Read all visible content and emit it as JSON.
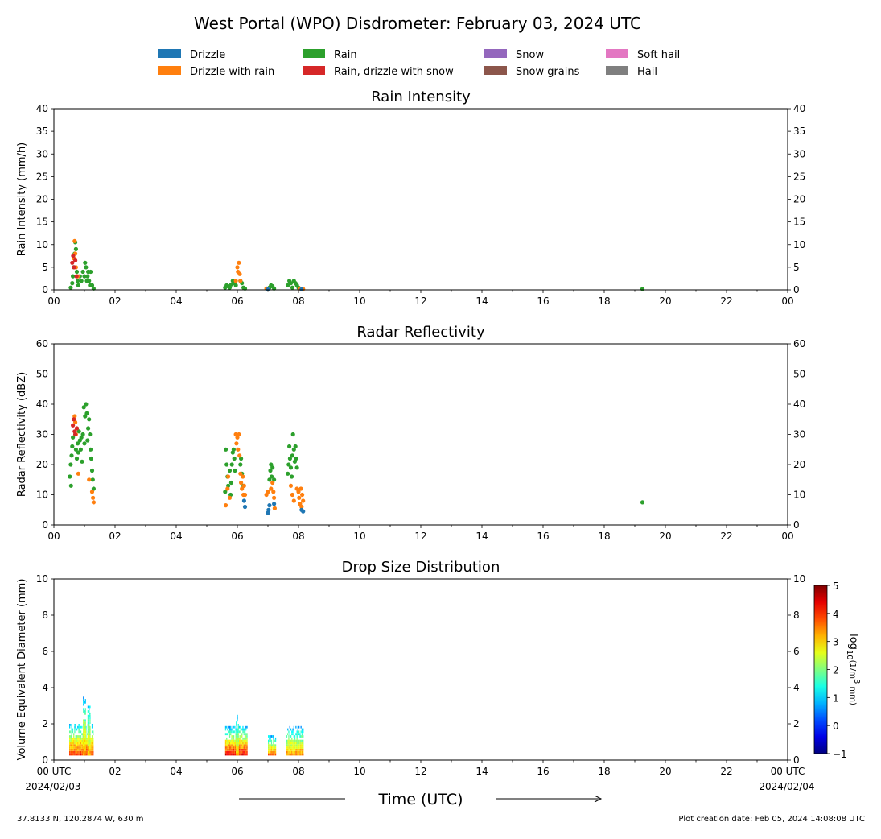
{
  "figure": {
    "title": "West Portal (WPO) Disdrometer: February 03, 2024 UTC",
    "xlabel": "Time (UTC)",
    "footer_left": "37.8133 N, 120.2874 W, 630 m",
    "footer_right": "Plot creation date: Feb 05, 2024 14:08:08 UTC",
    "x_ticks": [
      "00",
      "02",
      "04",
      "06",
      "08",
      "10",
      "12",
      "14",
      "16",
      "18",
      "20",
      "22",
      "00"
    ],
    "bottom_x_ticks": [
      "00 UTC",
      "02",
      "04",
      "06",
      "08",
      "10",
      "12",
      "14",
      "16",
      "18",
      "20",
      "22",
      "00 UTC"
    ],
    "start_date": "2024/02/03",
    "end_date": "2024/02/04"
  },
  "legend": [
    {
      "label": "Drizzle",
      "color": "#1f77b4"
    },
    {
      "label": "Drizzle with rain",
      "color": "#ff7f0e"
    },
    {
      "label": "Rain",
      "color": "#2ca02c"
    },
    {
      "label": "Rain, drizzle with snow",
      "color": "#d62728"
    },
    {
      "label": "Snow",
      "color": "#9467bd"
    },
    {
      "label": "Snow grains",
      "color": "#8c564b"
    },
    {
      "label": "Soft hail",
      "color": "#e377c2"
    },
    {
      "label": "Hail",
      "color": "#7f7f7f"
    }
  ],
  "chart_data": [
    {
      "type": "scatter",
      "title": "Rain Intensity",
      "ylabel": "Rain Intensity (mm/h)",
      "xlim": [
        0,
        24
      ],
      "ylim": [
        0,
        40
      ],
      "yticks": [
        0,
        5,
        10,
        15,
        20,
        25,
        30,
        35,
        40
      ],
      "series": [
        {
          "name": "Rain",
          "color": "#2ca02c",
          "points": [
            [
              0.55,
              0.5
            ],
            [
              0.6,
              1.5
            ],
            [
              0.62,
              3
            ],
            [
              0.65,
              5
            ],
            [
              0.68,
              8
            ],
            [
              0.7,
              10.5
            ],
            [
              0.72,
              9
            ],
            [
              0.75,
              4
            ],
            [
              0.78,
              2
            ],
            [
              0.8,
              1
            ],
            [
              0.85,
              3
            ],
            [
              0.9,
              2
            ],
            [
              0.95,
              4
            ],
            [
              1.0,
              3
            ],
            [
              1.02,
              6
            ],
            [
              1.05,
              5
            ],
            [
              1.08,
              2
            ],
            [
              1.1,
              3
            ],
            [
              1.12,
              4
            ],
            [
              1.15,
              2
            ],
            [
              1.18,
              1
            ],
            [
              1.2,
              4
            ],
            [
              1.25,
              1
            ],
            [
              1.3,
              0.3
            ],
            [
              5.6,
              0.5
            ],
            [
              5.65,
              1
            ],
            [
              5.7,
              0.8
            ],
            [
              5.75,
              0.5
            ],
            [
              5.8,
              1.2
            ],
            [
              5.85,
              2
            ],
            [
              5.9,
              1.5
            ],
            [
              5.95,
              1
            ],
            [
              6.1,
              2
            ],
            [
              6.15,
              1.5
            ],
            [
              6.2,
              0.5
            ],
            [
              6.25,
              0.3
            ],
            [
              7.05,
              0.5
            ],
            [
              7.1,
              1
            ],
            [
              7.15,
              0.8
            ],
            [
              7.2,
              0.3
            ],
            [
              7.65,
              1
            ],
            [
              7.7,
              2
            ],
            [
              7.75,
              1.5
            ],
            [
              7.8,
              0.5
            ],
            [
              7.85,
              2
            ],
            [
              7.9,
              1.5
            ],
            [
              7.95,
              1
            ],
            [
              8.0,
              0.5
            ],
            [
              19.25,
              0.2
            ]
          ]
        },
        {
          "name": "Drizzle with rain",
          "color": "#ff7f0e",
          "points": [
            [
              0.65,
              7
            ],
            [
              0.68,
              10.8
            ],
            [
              0.7,
              8
            ],
            [
              0.72,
              5
            ],
            [
              0.78,
              3
            ],
            [
              5.95,
              2
            ],
            [
              6.0,
              5
            ],
            [
              6.02,
              4
            ],
            [
              6.05,
              6
            ],
            [
              6.08,
              3.5
            ],
            [
              6.1,
              2
            ],
            [
              6.95,
              0.3
            ],
            [
              7.0,
              0.2
            ],
            [
              8.05,
              0.3
            ],
            [
              8.1,
              0.2
            ],
            [
              8.15,
              0.2
            ]
          ]
        },
        {
          "name": "Rain, drizzle with snow",
          "color": "#d62728",
          "points": [
            [
              0.6,
              6
            ],
            [
              0.63,
              7.5
            ],
            [
              0.66,
              5
            ],
            [
              0.7,
              6.5
            ],
            [
              0.74,
              3
            ]
          ]
        },
        {
          "name": "Drizzle",
          "color": "#1f77b4",
          "points": [
            [
              7.0,
              0.1
            ],
            [
              8.1,
              0.1
            ]
          ]
        }
      ]
    },
    {
      "type": "scatter",
      "title": "Radar Reflectivity",
      "ylabel": "Radar Reflectivity (dBZ)",
      "xlim": [
        0,
        24
      ],
      "ylim": [
        0,
        60
      ],
      "yticks": [
        0,
        10,
        20,
        30,
        40,
        50,
        60
      ],
      "series": [
        {
          "name": "Rain",
          "color": "#2ca02c",
          "points": [
            [
              0.52,
              16
            ],
            [
              0.55,
              20
            ],
            [
              0.56,
              13
            ],
            [
              0.58,
              23
            ],
            [
              0.6,
              26
            ],
            [
              0.62,
              29
            ],
            [
              0.7,
              30
            ],
            [
              0.72,
              25
            ],
            [
              0.75,
              22
            ],
            [
              0.78,
              27
            ],
            [
              0.8,
              24
            ],
            [
              0.82,
              31
            ],
            [
              0.85,
              28
            ],
            [
              0.88,
              25
            ],
            [
              0.9,
              29
            ],
            [
              0.92,
              21
            ],
            [
              0.95,
              30
            ],
            [
              0.98,
              39
            ],
            [
              1.0,
              27
            ],
            [
              1.02,
              36
            ],
            [
              1.05,
              40
            ],
            [
              1.08,
              37
            ],
            [
              1.1,
              28
            ],
            [
              1.12,
              32
            ],
            [
              1.15,
              35
            ],
            [
              1.18,
              30
            ],
            [
              1.2,
              25
            ],
            [
              1.22,
              22
            ],
            [
              1.25,
              18
            ],
            [
              1.27,
              15
            ],
            [
              1.3,
              12
            ],
            [
              5.6,
              11
            ],
            [
              5.62,
              25
            ],
            [
              5.65,
              20
            ],
            [
              5.68,
              16
            ],
            [
              5.7,
              13
            ],
            [
              5.75,
              18
            ],
            [
              5.78,
              10
            ],
            [
              5.8,
              14
            ],
            [
              5.82,
              20
            ],
            [
              5.85,
              24
            ],
            [
              5.88,
              25
            ],
            [
              5.9,
              22
            ],
            [
              5.92,
              18
            ],
            [
              6.1,
              20
            ],
            [
              6.12,
              22
            ],
            [
              6.15,
              17
            ],
            [
              6.2,
              13
            ],
            [
              7.05,
              15
            ],
            [
              7.08,
              18
            ],
            [
              7.1,
              20
            ],
            [
              7.12,
              16
            ],
            [
              7.15,
              19
            ],
            [
              7.2,
              15
            ],
            [
              7.65,
              17
            ],
            [
              7.68,
              20
            ],
            [
              7.7,
              26
            ],
            [
              7.72,
              22
            ],
            [
              7.75,
              19
            ],
            [
              7.78,
              16
            ],
            [
              7.8,
              23
            ],
            [
              7.82,
              30
            ],
            [
              7.85,
              25
            ],
            [
              7.88,
              21
            ],
            [
              7.9,
              26
            ],
            [
              7.92,
              22
            ],
            [
              7.95,
              19
            ],
            [
              19.25,
              7.5
            ]
          ]
        },
        {
          "name": "Drizzle with rain",
          "color": "#ff7f0e",
          "points": [
            [
              0.68,
              36
            ],
            [
              0.7,
              34
            ],
            [
              0.72,
              30
            ],
            [
              0.75,
              32
            ],
            [
              0.8,
              17
            ],
            [
              1.15,
              15
            ],
            [
              1.25,
              11
            ],
            [
              1.28,
              9
            ],
            [
              1.3,
              7.5
            ],
            [
              5.62,
              6.5
            ],
            [
              5.68,
              12
            ],
            [
              5.7,
              16
            ],
            [
              5.75,
              9
            ],
            [
              5.95,
              30
            ],
            [
              5.97,
              27
            ],
            [
              6.0,
              29
            ],
            [
              6.02,
              25
            ],
            [
              6.05,
              30
            ],
            [
              6.07,
              23
            ],
            [
              6.1,
              17
            ],
            [
              6.12,
              14
            ],
            [
              6.15,
              12
            ],
            [
              6.18,
              16
            ],
            [
              6.2,
              10
            ],
            [
              6.22,
              13
            ],
            [
              6.25,
              10
            ],
            [
              6.95,
              10
            ],
            [
              7.0,
              11
            ],
            [
              7.1,
              12
            ],
            [
              7.15,
              14
            ],
            [
              7.18,
              11
            ],
            [
              7.2,
              9
            ],
            [
              7.22,
              5.5
            ],
            [
              7.75,
              13
            ],
            [
              7.8,
              10
            ],
            [
              7.85,
              8
            ],
            [
              7.95,
              12
            ],
            [
              8.0,
              11
            ],
            [
              8.02,
              9
            ],
            [
              8.05,
              7
            ],
            [
              8.08,
              12
            ],
            [
              8.1,
              6
            ],
            [
              8.12,
              10
            ],
            [
              8.15,
              8
            ]
          ]
        },
        {
          "name": "Rain, drizzle with snow",
          "color": "#d62728",
          "points": [
            [
              0.62,
              33
            ],
            [
              0.65,
              35
            ],
            [
              0.68,
              31
            ],
            [
              0.7,
              30
            ],
            [
              0.75,
              32
            ]
          ]
        },
        {
          "name": "Drizzle",
          "color": "#1f77b4",
          "points": [
            [
              6.22,
              8
            ],
            [
              6.25,
              6
            ],
            [
              7.0,
              4
            ],
            [
              7.02,
              5
            ],
            [
              7.05,
              6.5
            ],
            [
              7.2,
              7
            ],
            [
              8.1,
              5
            ],
            [
              8.15,
              4.5
            ]
          ]
        }
      ]
    },
    {
      "type": "heatmap",
      "title": "Drop Size Distribution",
      "ylabel": "Volume Equivalent Diameter (mm)",
      "xlim": [
        0,
        24
      ],
      "ylim": [
        0,
        10
      ],
      "yticks": [
        0,
        2,
        4,
        6,
        8,
        10
      ],
      "colorbar": {
        "label": "log10(1/m3 mm)",
        "label_base": "log",
        "label_sub": "10",
        "label_mid": "(1/m",
        "label_sup": "3",
        "label_end": " mm)",
        "min": -1,
        "max": 5,
        "ticks": [
          -1,
          0,
          1,
          2,
          3,
          4,
          5
        ]
      },
      "cells": [
        {
          "x0": 0.5,
          "x1": 1.3,
          "ymax": 2.0,
          "peak": 4.0
        },
        {
          "x0": 0.95,
          "x1": 1.05,
          "ymax": 3.5,
          "peak": 3.5
        },
        {
          "x0": 1.1,
          "x1": 1.2,
          "ymax": 3.0,
          "peak": 3.2
        },
        {
          "x0": 5.6,
          "x1": 6.3,
          "ymax": 1.8,
          "peak": 4.3
        },
        {
          "x0": 5.95,
          "x1": 6.05,
          "ymax": 2.5,
          "peak": 3.0
        },
        {
          "x0": 7.0,
          "x1": 7.25,
          "ymax": 1.3,
          "peak": 3.6
        },
        {
          "x0": 7.6,
          "x1": 8.15,
          "ymax": 1.8,
          "peak": 3.4
        }
      ]
    }
  ]
}
